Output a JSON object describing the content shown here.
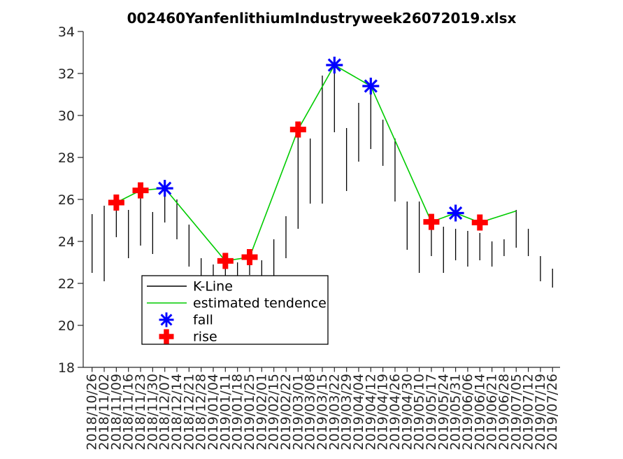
{
  "chart_data": {
    "type": "kline-hilo-with-trend",
    "title": "002460YanfenlithiumIndustryweek26072019.xlsx",
    "xlabel": "",
    "ylabel": "",
    "ylim": [
      18,
      34
    ],
    "y_ticks": [
      18,
      20,
      22,
      24,
      26,
      28,
      30,
      32,
      34
    ],
    "grid": false,
    "x_labels": [
      "2018/10/26",
      "2018/11/02",
      "2018/11/09",
      "2018/11/16",
      "2018/11/23",
      "2018/11/30",
      "2018/12/07",
      "2018/12/14",
      "2018/12/21",
      "2018/12/28",
      "2019/01/04",
      "2019/01/11",
      "2019/01/18",
      "2019/01/25",
      "2019/02/01",
      "2019/02/15",
      "2019/02/22",
      "2019/03/01",
      "2019/03/08",
      "2019/03/15",
      "2019/03/22",
      "2019/03/29",
      "2019/04/04",
      "2019/04/12",
      "2019/04/19",
      "2019/04/26",
      "2019/04/30",
      "2019/05/10",
      "2019/05/17",
      "2019/05/24",
      "2019/05/31",
      "2019/06/06",
      "2019/06/14",
      "2019/06/21",
      "2019/06/28",
      "2019/07/05",
      "2019/07/12",
      "2019/07/19",
      "2019/07/26"
    ],
    "series": {
      "kline": {
        "label": "K-Line",
        "type": "hilo-bars",
        "color": "#000000",
        "high": [
          25.3,
          25.7,
          25.9,
          25.5,
          26.1,
          25.4,
          26.3,
          26.0,
          24.8,
          23.2,
          22.9,
          23.4,
          23.0,
          23.6,
          23.1,
          24.1,
          25.2,
          29.3,
          28.9,
          31.9,
          32.3,
          29.4,
          30.6,
          31.0,
          29.8,
          28.9,
          25.9,
          25.9,
          24.9,
          24.7,
          24.6,
          24.5,
          24.4,
          24.0,
          24.1,
          25.5,
          24.6,
          23.3,
          22.7
        ],
        "low": [
          22.5,
          22.1,
          24.2,
          23.2,
          23.8,
          23.4,
          24.9,
          24.1,
          22.8,
          22.2,
          21.9,
          22.3,
          22.0,
          22.4,
          22.1,
          22.3,
          23.2,
          24.6,
          25.8,
          25.8,
          29.2,
          26.4,
          27.8,
          28.4,
          27.6,
          25.9,
          23.6,
          22.5,
          23.3,
          22.5,
          23.1,
          22.8,
          23.1,
          22.8,
          23.3,
          23.7,
          23.3,
          22.1,
          21.8
        ]
      },
      "tendence": {
        "label": "estimated tendence",
        "type": "line",
        "color": "#00cc00",
        "vertices": [
          [
            "2018/11/09",
            25.85
          ],
          [
            "2018/11/23",
            26.43
          ],
          [
            "2018/12/07",
            26.53
          ],
          [
            "2019/01/11",
            23.07
          ],
          [
            "2019/01/25",
            23.25
          ],
          [
            "2019/03/01",
            29.33
          ],
          [
            "2019/03/22",
            32.4
          ],
          [
            "2019/04/12",
            31.4
          ],
          [
            "2019/05/17",
            24.93
          ],
          [
            "2019/05/31",
            25.35
          ],
          [
            "2019/06/14",
            24.9
          ],
          [
            "2019/07/05",
            25.45
          ]
        ]
      },
      "fall": {
        "label": "fall",
        "type": "marker-asterisk",
        "color": "#0000ff",
        "points": [
          [
            "2018/12/07",
            26.53
          ],
          [
            "2019/03/22",
            32.4
          ],
          [
            "2019/04/12",
            31.4
          ],
          [
            "2019/05/31",
            25.35
          ]
        ]
      },
      "rise": {
        "label": "rise",
        "type": "marker-plus",
        "color": "#ff0000",
        "points": [
          [
            "2018/11/09",
            25.85
          ],
          [
            "2018/11/23",
            26.43
          ],
          [
            "2019/01/11",
            23.07
          ],
          [
            "2019/01/25",
            23.25
          ],
          [
            "2019/03/01",
            29.33
          ],
          [
            "2019/05/17",
            24.93
          ],
          [
            "2019/06/14",
            24.9
          ]
        ]
      }
    },
    "legend": {
      "position": "inside-bottom-left",
      "entries": [
        "K-Line",
        "estimated tendence",
        "fall",
        "rise"
      ]
    }
  }
}
